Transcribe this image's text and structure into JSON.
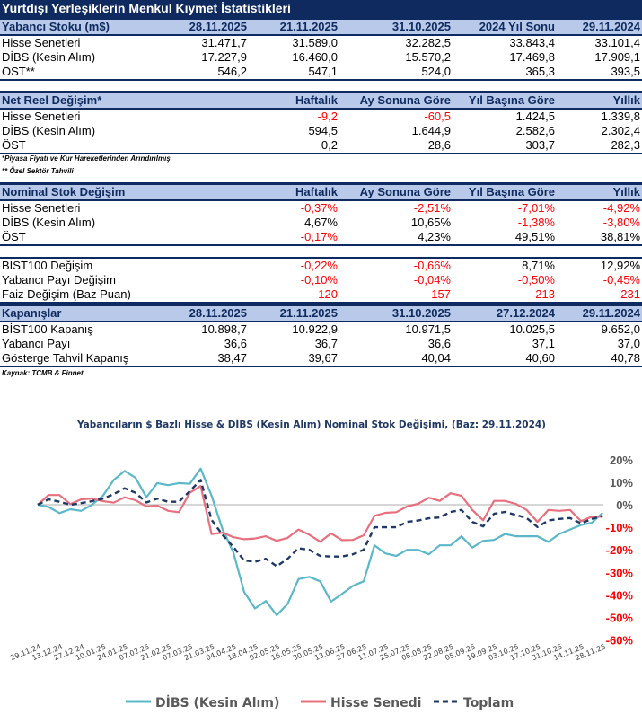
{
  "title": "Yurtdışı Yerleşiklerin Menkul Kıymet İstatistikleri",
  "sections": [
    {
      "header": [
        "Yabancı Stoku (m$)",
        "28.11.2025",
        "21.11.2025",
        "31.10.2025",
        "2024 Yıl Sonu",
        "29.11.2024"
      ],
      "rows": [
        [
          "Hisse Senetleri",
          "31.471,7",
          "31.589,0",
          "32.282,5",
          "33.843,4",
          "33.101,4"
        ],
        [
          "DİBS (Kesin Alım)",
          "17.227,9",
          "16.460,0",
          "15.570,2",
          "17.469,8",
          "17.909,1"
        ],
        [
          "ÖST**",
          "546,2",
          "547,1",
          "524,0",
          "365,3",
          "393,5"
        ]
      ]
    },
    {
      "header": [
        "Net Reel Değişim*",
        "",
        "Haftalık",
        "Ay Sonuna Göre",
        "Yıl Başına Göre",
        "Yıllık"
      ],
      "rows": [
        [
          "Hisse Senetleri",
          "",
          "-9,2",
          "-60,5",
          "1.424,5",
          "1.339,8"
        ],
        [
          "DİBS (Kesin Alım)",
          "",
          "594,5",
          "1.644,9",
          "2.582,6",
          "2.302,4"
        ],
        [
          "ÖST",
          "",
          "0,2",
          "28,6",
          "303,7",
          "282,3"
        ]
      ]
    },
    {
      "header": [
        "Nominal Stok Değişim",
        "",
        "Haftalık",
        "Ay Sonuna Göre",
        "Yıl Başına Göre",
        "Yıllık"
      ],
      "rows": [
        [
          "Hisse Senetleri",
          "",
          "-0,37%",
          "-2,51%",
          "-7,01%",
          "-4,92%"
        ],
        [
          "DİBS (Kesin Alım)",
          "",
          "4,67%",
          "10,65%",
          "-1,38%",
          "-3,80%"
        ],
        [
          "ÖST",
          "",
          "-0,17%",
          "4,23%",
          "49,51%",
          "38,81%"
        ]
      ]
    },
    {
      "header": null,
      "rows": [
        [
          "BİST100 Değişim",
          "",
          "-0,22%",
          "-0,66%",
          "8,71%",
          "12,92%"
        ],
        [
          "Yabancı Payı Değişim",
          "",
          "-0,10%",
          "-0,04%",
          "-0,50%",
          "-0,45%"
        ],
        [
          "Faiz Değişim (Baz Puan)",
          "",
          "-120",
          "-157",
          "-213",
          "-231"
        ]
      ]
    },
    {
      "header": [
        "Kapanışlar",
        "28.11.2025",
        "21.11.2025",
        "31.10.2025",
        "27.12.2024",
        "29.11.2024"
      ],
      "rows": [
        [
          "BİST100 Kapanış",
          "10.898,7",
          "10.922,9",
          "10.971,5",
          "10.025,5",
          "9.652,0"
        ],
        [
          "Yabancı Payı",
          "36,6",
          "36,7",
          "36,6",
          "37,1",
          "37,0"
        ],
        [
          "Gösterge Tahvil Kapanış",
          "38,47",
          "39,67",
          "40,04",
          "40,60",
          "40,78"
        ]
      ]
    }
  ],
  "notes": {
    "n1": "*Piyasa Fiyatı ve Kur Hareketlerinden Arındırılmış",
    "n2": "** Özel Sektör Tahvili",
    "source": "Kaynak: TCMB & Finnet"
  },
  "colors": {
    "navy": "#0e2a5e",
    "header_bg": "#b8c9e9",
    "negative": "#ff0000",
    "dibs": "#5bb8c9",
    "hisse": "#e8707e",
    "toplam": "#1f3864"
  },
  "chart_data": {
    "type": "line",
    "title": "Yabancıların $ Bazlı Hisse & DİBS (Kesin Alım) Nominal Stok Değişimi, (Baz: 29.11.2024)",
    "x_tick_labels": [
      "29.11.24",
      "13.12.24",
      "27.12.24",
      "10.01.25",
      "24.01.25",
      "07.02.25",
      "21.02.25",
      "07.03.25",
      "21.03.25",
      "04.04.25",
      "18.04.25",
      "02.05.25",
      "16.05.25",
      "30.05.25",
      "13.06.25",
      "27.06.25",
      "11.07.25",
      "25.07.25",
      "08.08.25",
      "22.08.25",
      "05.09.25",
      "19.09.25",
      "03.10.25",
      "17.10.25",
      "31.10.25",
      "14.11.25",
      "28.11.25"
    ],
    "y_ticks": [
      "20%",
      "10%",
      "0%",
      "-10%",
      "-20%",
      "-30%",
      "-40%",
      "-50%",
      "-60%"
    ],
    "ylim": [
      -60,
      20
    ],
    "unit": "%",
    "series": [
      {
        "name": "DİBS (Kesin Alım)",
        "style": "solid",
        "values": [
          0,
          -1,
          -3.7,
          -2,
          -2.7,
          0,
          4,
          11,
          15,
          12,
          3.3,
          9.6,
          8.7,
          9.6,
          9.3,
          16,
          4,
          -10.7,
          -21,
          -38.7,
          -46,
          -42.7,
          -49,
          -44,
          -33,
          -32,
          -34,
          -43,
          -39.6,
          -36,
          -34,
          -18,
          -21.6,
          -22.7,
          -20,
          -20,
          -22,
          -18,
          -18,
          -14,
          -19,
          -16,
          -15.6,
          -13,
          -14,
          -14,
          -14,
          -16.5,
          -13,
          -11,
          -9,
          -8,
          -3.6
        ]
      },
      {
        "name": "Hisse Senedi",
        "style": "solid",
        "values": [
          0,
          4.3,
          4.3,
          0.3,
          2.4,
          2.7,
          1.6,
          0.9,
          3.3,
          2,
          -0.7,
          -0.4,
          -2.7,
          -3.3,
          5.3,
          8.3,
          -13,
          -12.4,
          -14.4,
          -15.3,
          -15,
          -14,
          -16,
          -14.7,
          -11,
          -13.3,
          -16.4,
          -12.7,
          -15.7,
          -15.6,
          -13.6,
          -4.9,
          -3.6,
          -3.3,
          -0.7,
          0.4,
          3.1,
          1.7,
          5.1,
          4,
          -2.3,
          -6.9,
          1.7,
          1.7,
          0.4,
          -2.3,
          -7.6,
          -2.3,
          -2.7,
          -2.3,
          -7.3,
          -5.3,
          -5.3
        ]
      },
      {
        "name": "Toplam",
        "style": "dashed",
        "values": [
          0,
          2.4,
          1.3,
          0,
          0.7,
          1.6,
          2.7,
          4.7,
          7.3,
          5.3,
          1,
          2.7,
          1.3,
          1.3,
          6,
          11,
          -6.7,
          -13.3,
          -18.7,
          -24.7,
          -25.3,
          -24,
          -27.3,
          -24,
          -19.3,
          -20,
          -22.7,
          -23,
          -23,
          -22,
          -20,
          -10,
          -10,
          -10,
          -7.6,
          -7,
          -6,
          -5.6,
          -3.2,
          -2.3,
          -7.6,
          -9.6,
          -4,
          -3.2,
          -4.5,
          -5.9,
          -9.9,
          -7,
          -6.3,
          -5.9,
          -8.3,
          -6.3,
          -5
        ]
      }
    ],
    "legend": "bottom",
    "zero_line": true
  }
}
